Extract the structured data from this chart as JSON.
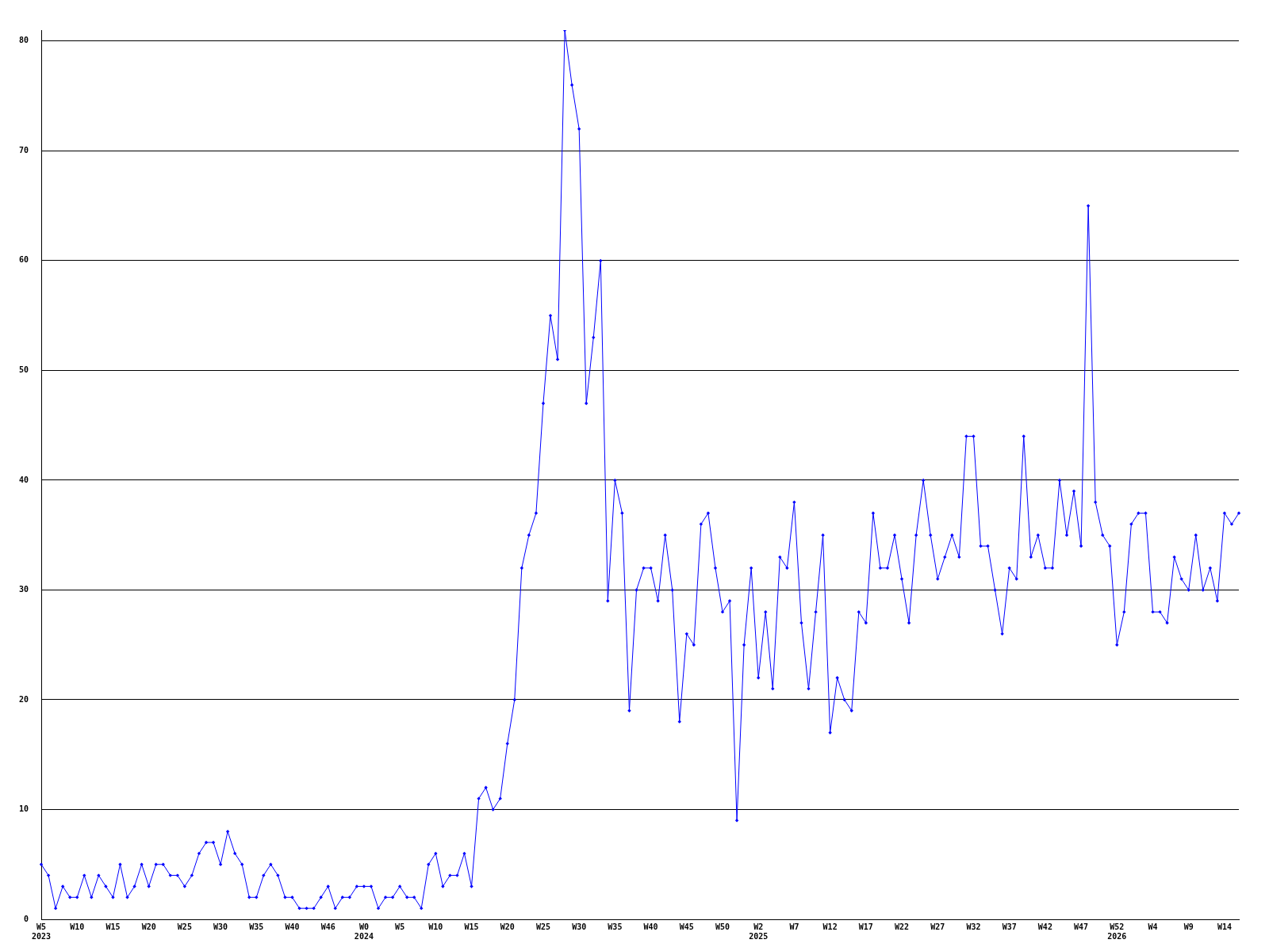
{
  "chart_data": {
    "type": "line",
    "categories": [
      "W5\n2023",
      null,
      null,
      null,
      null,
      "W10",
      null,
      null,
      null,
      null,
      "W15",
      null,
      null,
      null,
      null,
      "W20",
      null,
      null,
      null,
      null,
      "W25",
      null,
      null,
      null,
      null,
      "W30",
      null,
      null,
      null,
      null,
      "W35",
      null,
      null,
      null,
      null,
      "W40",
      null,
      null,
      null,
      null,
      "W46",
      null,
      null,
      null,
      null,
      "W0\n2024",
      null,
      null,
      null,
      null,
      "W5",
      null,
      null,
      null,
      null,
      "W10",
      null,
      null,
      null,
      null,
      "W15",
      null,
      null,
      null,
      null,
      "W20",
      null,
      null,
      null,
      null,
      "W25",
      null,
      null,
      null,
      null,
      "W30",
      null,
      null,
      null,
      null,
      "W35",
      null,
      null,
      null,
      null,
      "W40",
      null,
      null,
      null,
      null,
      "W45",
      null,
      null,
      null,
      null,
      "W50",
      null,
      null,
      null,
      null,
      "W2\n2025",
      null,
      null,
      null,
      null,
      "W7",
      null,
      null,
      null,
      null,
      "W12",
      null,
      null,
      null,
      null,
      "W17",
      null,
      null,
      null,
      null,
      "W22",
      null,
      null,
      null,
      null,
      "W27",
      null,
      null,
      null,
      null,
      "W32",
      null,
      null,
      null,
      null,
      "W37",
      null,
      null,
      null,
      null,
      "W42",
      null,
      null,
      null,
      null,
      "W47",
      null,
      null,
      null,
      null,
      "W52\n2026",
      null,
      null,
      null,
      null,
      "W4",
      null,
      null,
      null,
      null,
      "W9",
      null,
      null,
      null,
      null,
      "W14",
      null,
      null
    ],
    "values": [
      5,
      4,
      1,
      3,
      2,
      2,
      4,
      2,
      4,
      3,
      2,
      5,
      2,
      3,
      5,
      3,
      5,
      5,
      4,
      4,
      3,
      4,
      6,
      7,
      7,
      5,
      8,
      6,
      5,
      2,
      2,
      4,
      5,
      4,
      2,
      2,
      1,
      1,
      1,
      2,
      3,
      1,
      2,
      2,
      3,
      3,
      3,
      1,
      2,
      2,
      3,
      2,
      2,
      1,
      5,
      6,
      3,
      4,
      4,
      6,
      3,
      11,
      12,
      10,
      11,
      16,
      20,
      32,
      35,
      37,
      47,
      55,
      51,
      81,
      76,
      72,
      47,
      53,
      60,
      29,
      40,
      37,
      19,
      30,
      32,
      32,
      29,
      35,
      30,
      18,
      26,
      25,
      36,
      37,
      32,
      28,
      29,
      9,
      25,
      32,
      22,
      28,
      21,
      33,
      32,
      38,
      27,
      21,
      28,
      35,
      17,
      22,
      20,
      19,
      28,
      27,
      37,
      32,
      32,
      35,
      31,
      27,
      35,
      40,
      35,
      31,
      33,
      35,
      33,
      44,
      44,
      34,
      34,
      30,
      26,
      32,
      31,
      44,
      33,
      35,
      32,
      32,
      40,
      35,
      39,
      34,
      65,
      38,
      35,
      34,
      25,
      28,
      36,
      37,
      37,
      28,
      28,
      27,
      33,
      31,
      30,
      35,
      30,
      32,
      29,
      37,
      36,
      37
    ],
    "color": "#0000ff",
    "ylim": [
      0,
      81
    ],
    "yticks": [
      0,
      10,
      20,
      30,
      40,
      50,
      60,
      70,
      80
    ],
    "grid": "y",
    "marker": "diamond"
  }
}
